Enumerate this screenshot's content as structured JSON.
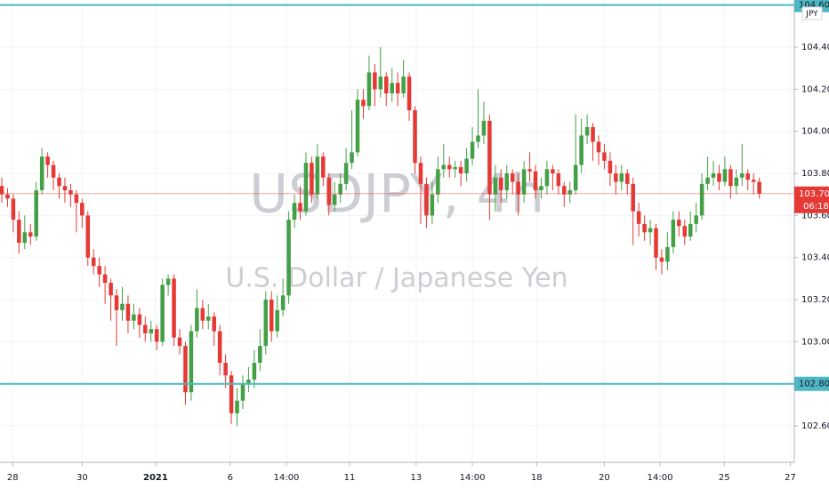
{
  "chart_data": {
    "type": "candlestick",
    "watermark_symbol": "USDJPY, 4h",
    "watermark_name": "U.S. Dollar / Japanese Yen",
    "currency": "JPY",
    "up_color": "#43a047",
    "down_color": "#e53935",
    "grid": true,
    "ylim": [
      102.427,
      104.624
    ],
    "yticks": [
      {
        "value": 102.6,
        "label": "102.600"
      },
      {
        "value": 103.0,
        "label": "103.000"
      },
      {
        "value": 103.2,
        "label": "103.200"
      },
      {
        "value": 103.4,
        "label": "103.400"
      },
      {
        "value": 103.6,
        "label": "103.600"
      },
      {
        "value": 103.8,
        "label": "103.800"
      },
      {
        "value": 104.0,
        "label": "104.000"
      },
      {
        "value": 104.2,
        "label": "104.200"
      },
      {
        "value": 104.4,
        "label": "104.400"
      }
    ],
    "xlim": [
      -0.31,
      138.1
    ],
    "xticks": [
      {
        "value": 1.9,
        "label": "28"
      },
      {
        "value": 14.0,
        "label": "30"
      },
      {
        "value": 26.8,
        "label": "2021"
      },
      {
        "value": 39.8,
        "label": "6"
      },
      {
        "value": 49.6,
        "label": "14:00"
      },
      {
        "value": 60.6,
        "label": "11"
      },
      {
        "value": 72.2,
        "label": "13"
      },
      {
        "value": 82.0,
        "label": "14:00"
      },
      {
        "value": 93.2,
        "label": "18"
      },
      {
        "value": 105.0,
        "label": "20"
      },
      {
        "value": 114.7,
        "label": "14:00"
      },
      {
        "value": 125.9,
        "label": "25"
      },
      {
        "value": 137.4,
        "label": "27"
      }
    ],
    "levels": [
      {
        "value": 104.6,
        "label": "104.600",
        "color": "#4fb7c4"
      },
      {
        "value": 102.8,
        "label": "102.800",
        "color": "#4fb7c4"
      }
    ],
    "last_price": {
      "value": 103.704,
      "label": "103.704",
      "color": "#e53935"
    },
    "countdown": "06:18",
    "open": [
      103.74,
      103.7,
      103.68,
      103.58,
      103.47,
      103.52,
      103.5,
      103.72,
      103.88,
      103.84,
      103.78,
      103.74,
      103.72,
      103.7,
      103.66,
      103.6,
      103.4,
      103.36,
      103.32,
      103.28,
      103.22,
      103.15,
      103.18,
      103.1,
      103.13,
      103.08,
      103.04,
      103.06,
      103.0,
      103.27,
      103.3,
      103.02,
      102.98,
      102.76,
      103.05,
      103.16,
      103.1,
      103.12,
      103.05,
      102.9,
      102.84,
      102.66,
      102.72,
      102.8,
      102.82,
      102.9,
      102.98,
      103.2,
      103.05,
      103.15,
      103.22,
      103.58,
      103.66,
      103.62,
      103.85,
      103.7,
      103.88,
      103.78,
      103.65,
      103.7,
      103.75,
      103.85,
      103.9,
      104.15,
      104.12,
      104.28,
      104.2,
      104.26,
      104.18,
      104.23,
      104.18,
      104.26,
      104.1,
      103.85,
      103.75,
      103.6,
      103.7,
      103.82,
      103.84,
      103.82,
      103.83,
      103.8,
      103.87,
      103.95,
      103.98,
      104.05,
      103.7,
      103.78,
      103.72,
      103.8,
      103.76,
      103.7,
      103.82,
      103.81,
      103.72,
      103.74,
      103.82,
      103.8,
      103.74,
      103.7,
      103.72,
      103.84,
      103.98,
      104.02,
      103.95,
      103.9,
      103.86,
      103.8,
      103.76,
      103.8,
      103.75,
      103.62,
      103.56,
      103.52,
      103.54,
      103.4,
      103.38,
      103.45,
      103.58,
      103.55,
      103.5,
      103.56,
      103.6,
      103.75,
      103.78,
      103.8,
      103.76,
      103.82,
      103.74,
      103.78,
      103.8,
      103.77,
      103.76
    ],
    "high": [
      103.78,
      103.73,
      103.7,
      103.62,
      103.6,
      103.56,
      103.76,
      103.92,
      103.9,
      103.86,
      103.8,
      103.78,
      103.75,
      103.72,
      103.68,
      103.62,
      103.44,
      103.4,
      103.36,
      103.3,
      103.25,
      103.26,
      103.22,
      103.18,
      103.16,
      103.12,
      103.1,
      103.08,
      103.3,
      103.32,
      103.32,
      103.06,
      103.0,
      103.08,
      103.25,
      103.2,
      103.18,
      103.14,
      103.08,
      102.94,
      102.86,
      102.78,
      102.84,
      102.88,
      102.96,
      103.06,
      103.24,
      103.24,
      103.22,
      103.3,
      103.62,
      103.7,
      103.74,
      103.9,
      103.88,
      103.94,
      103.9,
      103.8,
      103.76,
      103.8,
      103.92,
      104.1,
      104.2,
      104.2,
      104.36,
      104.32,
      104.4,
      104.28,
      104.3,
      104.28,
      104.34,
      104.28,
      104.12,
      103.88,
      103.78,
      103.76,
      103.88,
      103.94,
      103.88,
      103.86,
      103.86,
      103.92,
      104.02,
      104.2,
      104.14,
      104.08,
      103.84,
      103.82,
      103.84,
      103.82,
      103.8,
      103.86,
      103.9,
      103.84,
      103.78,
      103.86,
      103.84,
      103.82,
      103.76,
      103.76,
      104.08,
      104.06,
      104.08,
      104.04,
      103.98,
      103.94,
      103.9,
      103.84,
      103.84,
      103.82,
      103.78,
      103.66,
      103.6,
      103.58,
      103.56,
      103.44,
      103.52,
      103.62,
      103.62,
      103.58,
      103.62,
      103.66,
      103.8,
      103.88,
      103.86,
      103.84,
      103.88,
      103.84,
      103.82,
      103.94,
      103.82,
      103.8,
      103.78
    ],
    "low": [
      103.66,
      103.64,
      103.52,
      103.42,
      103.44,
      103.46,
      103.48,
      103.7,
      103.78,
      103.72,
      103.68,
      103.66,
      103.64,
      103.52,
      103.54,
      103.36,
      103.32,
      103.26,
      103.18,
      103.1,
      102.98,
      103.1,
      103.04,
      103.06,
      103.02,
      103.0,
      103.0,
      102.96,
      102.98,
      103.22,
      102.98,
      102.94,
      102.7,
      102.72,
      103.02,
      103.06,
      103.06,
      102.98,
      102.84,
      102.78,
      102.61,
      102.6,
      102.68,
      102.76,
      102.78,
      102.86,
      102.94,
      103.0,
      103.02,
      103.12,
      103.18,
      103.54,
      103.58,
      103.6,
      103.66,
      103.68,
      103.74,
      103.6,
      103.62,
      103.66,
      103.72,
      103.82,
      103.88,
      104.06,
      104.1,
      104.12,
      104.16,
      104.12,
      104.14,
      104.12,
      104.16,
      104.05,
      103.8,
      103.56,
      103.54,
      103.56,
      103.66,
      103.78,
      103.78,
      103.78,
      103.74,
      103.76,
      103.84,
      103.92,
      103.94,
      103.58,
      103.62,
      103.66,
      103.68,
      103.7,
      103.6,
      103.66,
      103.76,
      103.68,
      103.68,
      103.7,
      103.72,
      103.7,
      103.64,
      103.66,
      103.7,
      103.8,
      103.94,
      103.86,
      103.84,
      103.82,
      103.74,
      103.7,
      103.72,
      103.7,
      103.46,
      103.5,
      103.48,
      103.46,
      103.34,
      103.32,
      103.34,
      103.42,
      103.5,
      103.46,
      103.48,
      103.52,
      103.58,
      103.72,
      103.74,
      103.72,
      103.74,
      103.68,
      103.7,
      103.74,
      103.72,
      103.7,
      103.68
    ],
    "close": [
      103.7,
      103.68,
      103.58,
      103.47,
      103.52,
      103.5,
      103.72,
      103.88,
      103.84,
      103.78,
      103.74,
      103.72,
      103.7,
      103.66,
      103.6,
      103.4,
      103.36,
      103.32,
      103.28,
      103.22,
      103.15,
      103.18,
      103.1,
      103.13,
      103.08,
      103.04,
      103.06,
      103.0,
      103.27,
      103.3,
      103.02,
      102.98,
      102.76,
      103.05,
      103.16,
      103.1,
      103.12,
      103.05,
      102.9,
      102.84,
      102.66,
      102.72,
      102.8,
      102.82,
      102.9,
      102.98,
      103.2,
      103.05,
      103.15,
      103.22,
      103.58,
      103.66,
      103.62,
      103.85,
      103.7,
      103.88,
      103.78,
      103.65,
      103.7,
      103.75,
      103.85,
      103.9,
      104.15,
      104.12,
      104.28,
      104.2,
      104.26,
      104.18,
      104.23,
      104.18,
      104.26,
      104.1,
      103.85,
      103.75,
      103.6,
      103.7,
      103.82,
      103.84,
      103.82,
      103.83,
      103.8,
      103.87,
      103.95,
      103.98,
      104.05,
      103.7,
      103.78,
      103.72,
      103.8,
      103.76,
      103.7,
      103.82,
      103.81,
      103.72,
      103.74,
      103.82,
      103.8,
      103.74,
      103.7,
      103.72,
      103.84,
      103.98,
      104.02,
      103.95,
      103.9,
      103.86,
      103.8,
      103.76,
      103.8,
      103.75,
      103.62,
      103.56,
      103.52,
      103.54,
      103.4,
      103.38,
      103.45,
      103.58,
      103.55,
      103.5,
      103.56,
      103.6,
      103.75,
      103.78,
      103.8,
      103.76,
      103.82,
      103.74,
      103.78,
      103.8,
      103.77,
      103.76,
      103.704
    ]
  }
}
